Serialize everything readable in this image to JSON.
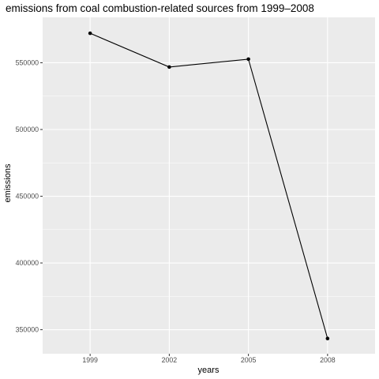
{
  "chart_data": {
    "type": "line",
    "title": "emissions from coal combustion-related sources from 1999–2008",
    "xlabel": "years",
    "ylabel": "emissions",
    "x": [
      "1999",
      "2002",
      "2005",
      "2008"
    ],
    "series": [
      {
        "values": [
          572100,
          546800,
          552700,
          343400
        ]
      }
    ],
    "y_ticks": [
      350000,
      400000,
      450000,
      500000,
      550000
    ],
    "y_tick_labels": [
      "350000",
      "400000",
      "450000",
      "500000",
      "550000"
    ],
    "ylim": [
      332000,
      584000
    ],
    "grid": true,
    "legend": "none",
    "colors": {
      "panel": "#ebebeb",
      "grid_major": "#ffffff",
      "line": "#000000",
      "tick_text": "#4d4d4d"
    }
  }
}
